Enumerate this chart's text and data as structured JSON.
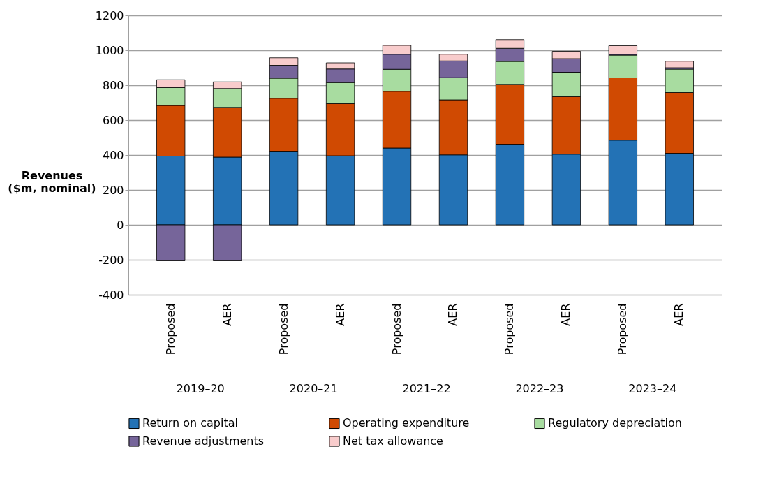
{
  "chart_data": {
    "type": "bar",
    "stacked": true,
    "ylabel": "Revenues ($m, nominal)",
    "categories": [
      "Proposed",
      "AER",
      "Proposed",
      "AER",
      "Proposed",
      "AER",
      "Proposed",
      "AER",
      "Proposed",
      "AER"
    ],
    "annotations": [
      "2019–20",
      "2020–21",
      "2021–22",
      "2022–23",
      "2023–24"
    ],
    "series": [
      {
        "name": "Return on capital",
        "color": "#2372b5",
        "values": [
          394,
          388,
          422,
          396,
          440,
          401,
          462,
          405,
          485,
          410
        ]
      },
      {
        "name": "Operating expenditure",
        "color": "#d04a02",
        "values": [
          290,
          285,
          303,
          298,
          325,
          315,
          343,
          329,
          357,
          348
        ]
      },
      {
        "name": "Regulatory depreciation",
        "color": "#a8dca0",
        "values": [
          102,
          108,
          115,
          121,
          126,
          127,
          131,
          140,
          130,
          134
        ]
      },
      {
        "name": "Revenue adjustments",
        "color": "#76659a",
        "values": [
          -206,
          -206,
          74,
          78,
          86,
          96,
          75,
          78,
          5,
          8
        ]
      },
      {
        "name": "Net tax allowance",
        "color": "#f8cccc",
        "values": [
          45,
          38,
          43,
          35,
          51,
          38,
          50,
          42,
          49,
          37
        ]
      }
    ],
    "ylim": [
      -400,
      1200
    ],
    "yticks": [
      {
        "value": -400,
        "label": "-400"
      },
      {
        "value": -200,
        "label": "-200"
      },
      {
        "value": 0,
        "label": "0"
      },
      {
        "value": 200,
        "label": "200"
      },
      {
        "value": 400,
        "label": "400"
      },
      {
        "value": 600,
        "label": "600"
      },
      {
        "value": 800,
        "label": "800"
      },
      {
        "value": 1000,
        "label": "1000"
      },
      {
        "value": 1200,
        "label": "1200"
      }
    ],
    "grid": "y",
    "legend": "bottom"
  }
}
